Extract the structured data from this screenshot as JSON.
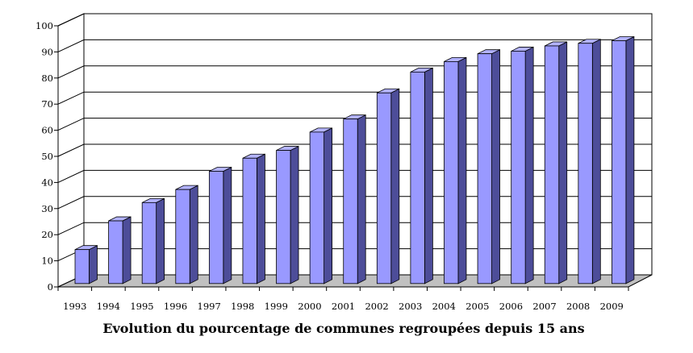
{
  "chart_data": {
    "type": "bar",
    "title": "Evolution du pourcentage de communes regroupées depuis 15 ans",
    "xlabel": "",
    "ylabel": "",
    "categories": [
      "1993",
      "1994",
      "1995",
      "1996",
      "1997",
      "1998",
      "1999",
      "2000",
      "2001",
      "2002",
      "2003",
      "2004",
      "2005",
      "2006",
      "2007",
      "2008",
      "2009"
    ],
    "values": [
      13,
      24,
      31,
      36,
      43,
      48,
      51,
      58,
      63,
      73,
      81,
      85,
      88,
      89,
      91,
      92,
      93
    ],
    "yticks": [
      "0",
      "10",
      "20",
      "30",
      "40",
      "50",
      "60",
      "70",
      "80",
      "90",
      "100"
    ],
    "ylim": [
      0,
      100
    ],
    "grid": true,
    "three_d": true,
    "legend": "none",
    "colors": {
      "bar_front": "#9999ff",
      "bar_top": "#b3b3ff",
      "bar_side": "#4d4d99",
      "bar_outline": "#000000",
      "floor": "#c0c0c0",
      "walls": "#ffffff",
      "gridlines": "#000000"
    }
  }
}
